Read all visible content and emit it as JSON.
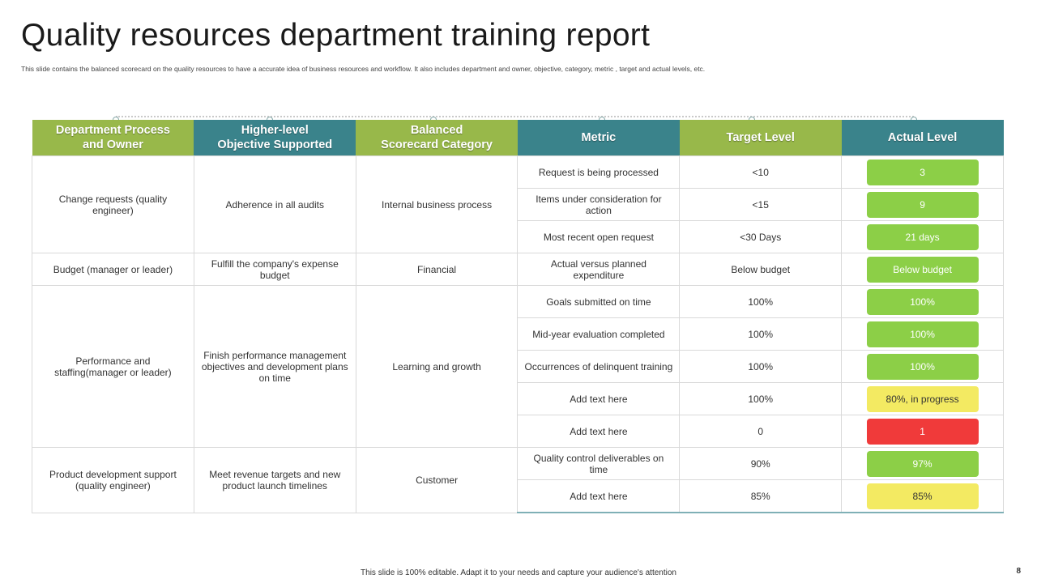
{
  "title": "Quality resources department training report",
  "subtitle": "This slide contains the balanced scorecard on the quality resources to have a accurate idea of business resources and workflow.  It also includes department and owner, objective, category, metric , target and actual levels, etc.",
  "headers": [
    {
      "line1": "Department Process",
      "line2": "and Owner"
    },
    {
      "line1": "Higher-level",
      "line2": "Objective Supported"
    },
    {
      "line1": "Balanced",
      "line2": "Scorecard Category"
    },
    {
      "line1": "Metric",
      "line2": ""
    },
    {
      "line1": "Target Level",
      "line2": ""
    },
    {
      "line1": "Actual Level",
      "line2": ""
    }
  ],
  "groups": [
    {
      "owner": "Change requests (quality engineer)",
      "objective": "Adherence in all audits",
      "category": "Internal business process"
    },
    {
      "owner": "Budget (manager or leader)",
      "objective": "Fulfill the company's expense budget",
      "category": "Financial"
    },
    {
      "owner": "Performance and staffing(manager or leader)",
      "objective": "Finish performance management objectives and development plans on time",
      "category": "Learning and growth"
    },
    {
      "owner": "Product development support (quality engineer)",
      "objective": "Meet revenue targets and new product launch timelines",
      "category": "Customer"
    }
  ],
  "rows": [
    {
      "metric": "Request is being processed",
      "target": "<10",
      "actual": "3",
      "status_color": "#8ccf47"
    },
    {
      "metric": "Items under consideration for action",
      "target": "<15",
      "actual": "9",
      "status_color": "#8ccf47"
    },
    {
      "metric": "Most recent open request",
      "target": "<30 Days",
      "actual": "21 days",
      "status_color": "#8ccf47"
    },
    {
      "metric": "Actual versus planned expenditure",
      "target": "Below budget",
      "actual": "Below budget",
      "status_color": "#8ccf47"
    },
    {
      "metric": "Goals submitted on time",
      "target": "100%",
      "actual": "100%",
      "status_color": "#8ccf47"
    },
    {
      "metric": "Mid-year evaluation completed",
      "target": "100%",
      "actual": "100%",
      "status_color": "#8ccf47"
    },
    {
      "metric": "Occurrences of delinquent training",
      "target": "100%",
      "actual": "100%",
      "status_color": "#8ccf47"
    },
    {
      "metric": "Add text here",
      "target": "100%",
      "actual": "80%, in progress",
      "status_color": "#f3ea62"
    },
    {
      "metric": "Add text here",
      "target": "0",
      "actual": "1",
      "status_color": "#f03a3a"
    },
    {
      "metric": "Quality control deliverables on time",
      "target": "90%",
      "actual": "97%",
      "status_color": "#8ccf47"
    },
    {
      "metric": "Add text here",
      "target": "85%",
      "actual": "85%",
      "status_color": "#f3ea62"
    }
  ],
  "colors": {
    "header_green": "#98b84a",
    "header_teal": "#3a838b",
    "status_green": "#8ccf47",
    "status_yellow": "#f3ea62",
    "status_red": "#f03a3a"
  },
  "footer": "This slide is 100% editable.  Adapt it to your needs and capture your audience's attention",
  "page_number": "8"
}
